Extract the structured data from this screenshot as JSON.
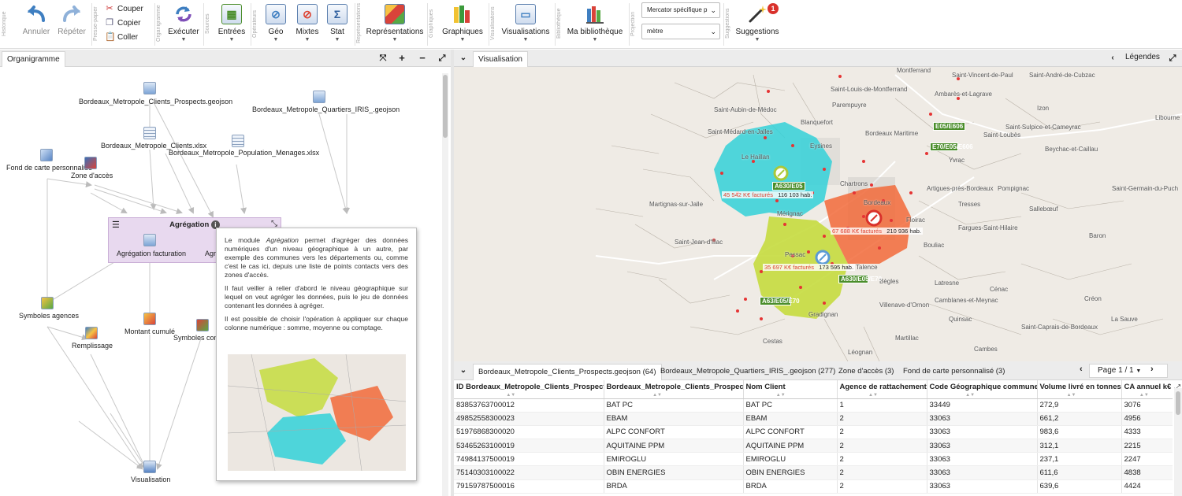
{
  "ribbon": {
    "groups": [
      "Historique",
      "Presse-papier",
      "Organigramme",
      "Sources",
      "Opérateurs",
      "Représentations",
      "Graphiques",
      "Visualisations",
      "Bibliothèque",
      "Projection",
      "Suggestions"
    ],
    "annuler": "Annuler",
    "repeter": "Répéter",
    "couper": "Couper",
    "copier": "Copier",
    "coller": "Coller",
    "executer": "Exécuter",
    "entrees": "Entrées",
    "geo": "Géo",
    "mixtes": "Mixtes",
    "stat": "Stat",
    "representations": "Représentations",
    "graphiques": "Graphiques",
    "visualisations": "Visualisations",
    "bibliotheque": "Ma bibliothèque",
    "projection": "Mercator spécifique p",
    "unite": "mètre",
    "suggestions": "Suggestions",
    "suggestions_badge": "1",
    "colors": {
      "accent": "#3f7fc1",
      "badge": "#d9312b"
    }
  },
  "left": {
    "tab": "Organigramme",
    "nodes": {
      "clients_prospects": "Bordeaux_Metropole_Clients_Prospects.geojson",
      "quartiers": "Bordeaux_Metropole_Quartiers_IRIS_.geojson",
      "clients": "Bordeaux_Metropole_Clients.xlsx",
      "population": "Bordeaux_Metropole_Population_Menages.xlsx",
      "fond": "Fond de carte personnalisé",
      "zone": "Zone d'accès",
      "symboles_agences": "Symboles agences",
      "remplissage": "Remplissage",
      "montant": "Montant cumulé",
      "symboles_co": "Symboles con",
      "visualisation": "Visualisation"
    },
    "aggregation": {
      "title": "Agrégation",
      "item1": "Agrégation facturation",
      "item2": "Agr"
    },
    "tooltip": {
      "p1_a": "Le module ",
      "p1_em": "Agrégation",
      "p1_b": " permet d'agréger des données numériques d'un niveau géographique à un autre, par exemple des communes vers les départements ou, comme c'est le cas ici, depuis une liste de points contacts vers des zones d'accès.",
      "p2": "Il faut veiller à relier d'abord le niveau géographique sur lequel on veut agréger les données, puis le jeu de données contenant les données à agréger.",
      "p3": "Il est possible de choisir l'opération à appliquer sur chaque colonne numérique : somme, moyenne ou comptage."
    }
  },
  "right": {
    "tab": "Visualisation",
    "legendes": "Légendes",
    "map": {
      "places": [
        "Montferrand",
        "Ambarès-et-Lagrave",
        "Izon",
        "Saint-Loubès",
        "Libourne",
        "Saint-Aubin-de-Médoc",
        "Saint-Médard-en-Jalles",
        "Blanquefort",
        "Bordeaux Maritime",
        "Saint-Vincent-de-Paul",
        "Saint-Louis-de-Montferrand",
        "Parempuyre",
        "Saint-André-de-Cubzac",
        "Yvrac",
        "Beychac-et-Caillau",
        "Saint-Germain-du-Puch",
        "Martignas-sur-Jalle",
        "Mérignac",
        "Chartrons",
        "Bordeaux",
        "Floirac",
        "Sallebœuf",
        "Fargues-Saint-Hilaire",
        "Baron",
        "Saint-Jean-d'Illac",
        "Pessac",
        "Bouliac",
        "Latresne",
        "Cénac",
        "Créon",
        "Camblanes-et-Meynac",
        "Quinsac",
        "Saint-Caprais-de-Bordeaux",
        "La Sauve",
        "Villenave-d'Ornon",
        "Cestas",
        "Léognan",
        "Cambes",
        "Eysines",
        "Talence",
        "Saint-Sulpice-et-Cameyrac",
        "Le Haillan",
        "Pompignac",
        "Tresses",
        "Artigues-près-Bordeaux",
        "Bègles",
        "Gradignan",
        "Martillac"
      ],
      "roads": [
        "E05/E606",
        "E70/E05/E606",
        "A630/E05",
        "A63/E05/E70",
        "A630/E05/E70"
      ],
      "labels": [
        {
          "value": "45 542 K€ facturés",
          "hab": "116 103 hab."
        },
        {
          "value": "67 688 K€ facturés",
          "hab": "210 936 hab."
        },
        {
          "value": "35 697 K€ facturés",
          "hab": "173 595 hab."
        }
      ],
      "zone_colors": {
        "north": "#33d1d8",
        "south": "#c5dc3e",
        "east": "#f26a3a",
        "points": "#e53434"
      }
    },
    "tabs": [
      "Bordeaux_Metropole_Clients_Prospects.geojson (64)",
      "Bordeaux_Metropole_Quartiers_IRIS_.geojson (277)",
      "Zone d'accès (3)",
      "Fond de carte personnalisé (3)"
    ],
    "pager": "Page 1 / 1",
    "columns": [
      "ID Bordeaux_Metropole_Clients_Prospects",
      "Bordeaux_Metropole_Clients_Prospects",
      "Nom Client",
      "Agence de rattachement",
      "Code Géographique commune",
      "Volume livré en tonnes",
      "CA annuel k€"
    ],
    "rows": [
      [
        "83853763700012",
        "BAT PC",
        "BAT PC",
        "1",
        "33449",
        "272,9",
        "3076"
      ],
      [
        "49852558300023",
        "EBAM",
        "EBAM",
        "2",
        "33063",
        "661,2",
        "4956"
      ],
      [
        "51976868300020",
        "ALPC CONFORT",
        "ALPC CONFORT",
        "2",
        "33063",
        "983,6",
        "4333"
      ],
      [
        "53465263100019",
        "AQUITAINE PPM",
        "AQUITAINE PPM",
        "2",
        "33063",
        "312,1",
        "2215"
      ],
      [
        "74984137500019",
        "EMIROGLU",
        "EMIROGLU",
        "2",
        "33063",
        "237,1",
        "2247"
      ],
      [
        "75140303100022",
        "OBIN ENERGIES",
        "OBIN ENERGIES",
        "2",
        "33063",
        "611,6",
        "4838"
      ],
      [
        "79159787500016",
        "BRDA",
        "BRDA",
        "2",
        "33063",
        "639,6",
        "4424"
      ]
    ]
  }
}
